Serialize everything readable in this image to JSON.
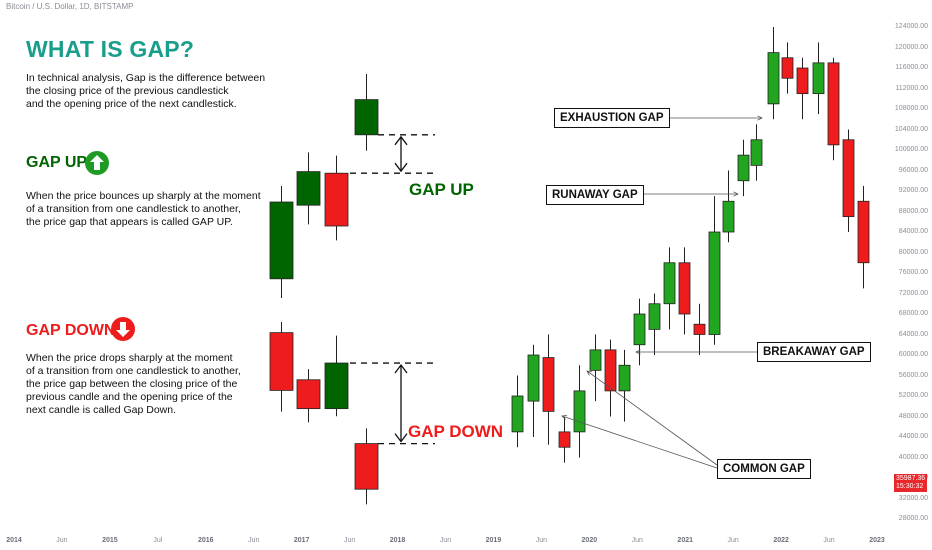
{
  "header": "Bitcoin / U.S. Dollar, 1D, BITSTAMP",
  "title": "WHAT IS GAP?",
  "intro": [
    "In technical analysis, Gap is the difference between",
    "the closing price of the previous candlestick",
    "and the opening price of the next candlestick."
  ],
  "gap_up": {
    "heading": "GAP UP",
    "text": [
      "When the price bounces up sharply at the moment",
      "of a transition from one candlestick to another,",
      "the price gap that appears is called GAP UP."
    ],
    "label": "GAP UP"
  },
  "gap_down": {
    "heading": "GAP DOWN",
    "text": [
      "When the price drops sharply at the moment",
      "of a transition from one candlestick to another,",
      "the price gap between the closing price of the",
      "previous candle and the opening price of the",
      "next candle is called Gap Down."
    ],
    "label": "GAP DOWN"
  },
  "colors": {
    "up": "#006400",
    "down": "#ee1c1c",
    "main_up": "#22a61f",
    "main_down": "#ee1c1c",
    "title": "#1a9e8c"
  },
  "chart_data": {
    "type": "candlestick",
    "price_axis_ticks": [
      "124000.00",
      "120000.00",
      "116000.00",
      "112000.00",
      "108000.00",
      "104000.00",
      "100000.00",
      "96000.00",
      "92000.00",
      "88000.00",
      "84000.00",
      "80000.00",
      "76000.00",
      "72000.00",
      "68000.00",
      "64000.00",
      "60000.00",
      "56000.00",
      "52000.00",
      "48000.00",
      "44000.00",
      "40000.00",
      "36000.00",
      "32000.00",
      "28000.00"
    ],
    "time_axis": [
      {
        "label": "2014",
        "year": true
      },
      {
        "label": "Jun",
        "year": false
      },
      {
        "label": "2015",
        "year": true
      },
      {
        "label": "Jul",
        "year": false
      },
      {
        "label": "2016",
        "year": true
      },
      {
        "label": "Jun",
        "year": false
      },
      {
        "label": "2017",
        "year": true
      },
      {
        "label": "Jun",
        "year": false
      },
      {
        "label": "2018",
        "year": true
      },
      {
        "label": "Jun",
        "year": false
      },
      {
        "label": "2019",
        "year": true
      },
      {
        "label": "Jun",
        "year": false
      },
      {
        "label": "2020",
        "year": true
      },
      {
        "label": "Jun",
        "year": false
      },
      {
        "label": "2021",
        "year": true
      },
      {
        "label": "Jun",
        "year": false
      },
      {
        "label": "2022",
        "year": true
      },
      {
        "label": "Jun",
        "year": false
      },
      {
        "label": "2023",
        "year": true
      }
    ],
    "current_price": "35987.36",
    "countdown": "15:30:32",
    "annotations": [
      "EXHAUSTION GAP",
      "RUNAWAY GAP",
      "BREAKAWAY GAP",
      "COMMON GAP"
    ],
    "gap_up_example": [
      {
        "dir": "up",
        "open": 12,
        "close": 60,
        "high": 70,
        "low": 0
      },
      {
        "dir": "up",
        "open": 58,
        "close": 79,
        "high": 91,
        "low": 46
      },
      {
        "dir": "down",
        "open": 78,
        "close": 45,
        "high": 89,
        "low": 36
      },
      {
        "dir": "up",
        "open": 102,
        "close": 124,
        "high": 140,
        "low": 92
      }
    ],
    "gap_down_example": [
      {
        "dir": "down",
        "open": 118,
        "close": 80,
        "high": 125,
        "low": 66
      },
      {
        "dir": "down",
        "open": 87,
        "close": 68,
        "high": 94,
        "low": 59
      },
      {
        "dir": "up",
        "open": 68,
        "close": 98,
        "high": 116,
        "low": 63
      },
      {
        "dir": "down",
        "open": 45,
        "close": 15,
        "high": 55,
        "low": 5
      }
    ],
    "main_candles": [
      {
        "open": 45000,
        "close": 52000,
        "high": 56000,
        "low": 42000
      },
      {
        "open": 51000,
        "close": 60000,
        "high": 62000,
        "low": 44000
      },
      {
        "open": 59500,
        "close": 49000,
        "high": 64000,
        "low": 42500
      },
      {
        "open": 45000,
        "close": 42000,
        "high": 48000,
        "low": 39000
      },
      {
        "open": 45000,
        "close": 53000,
        "high": 58000,
        "low": 40000
      },
      {
        "open": 57000,
        "close": 61000,
        "high": 64000,
        "low": 51000
      },
      {
        "open": 61000,
        "close": 53000,
        "high": 63000,
        "low": 48000
      },
      {
        "open": 53000,
        "close": 58000,
        "high": 61000,
        "low": 47000
      },
      {
        "open": 62000,
        "close": 68000,
        "high": 71000,
        "low": 58000
      },
      {
        "open": 65000,
        "close": 70000,
        "high": 72000,
        "low": 60000
      },
      {
        "open": 70000,
        "close": 78000,
        "high": 81000,
        "low": 65000
      },
      {
        "open": 78000,
        "close": 68000,
        "high": 81000,
        "low": 64000
      },
      {
        "open": 66000,
        "close": 64000,
        "high": 70000,
        "low": 60000
      },
      {
        "open": 64000,
        "close": 84000,
        "high": 91000,
        "low": 62000
      },
      {
        "open": 84000,
        "close": 90000,
        "high": 96000,
        "low": 82000
      },
      {
        "open": 94000,
        "close": 99000,
        "high": 102000,
        "low": 91000
      },
      {
        "open": 97000,
        "close": 102000,
        "high": 105000,
        "low": 94000
      },
      {
        "open": 109000,
        "close": 119000,
        "high": 124000,
        "low": 106000
      },
      {
        "open": 118000,
        "close": 114000,
        "high": 121000,
        "low": 111000
      },
      {
        "open": 116000,
        "close": 111000,
        "high": 118000,
        "low": 106000
      },
      {
        "open": 111000,
        "close": 117000,
        "high": 121000,
        "low": 107000
      },
      {
        "open": 117000,
        "close": 101000,
        "high": 118000,
        "low": 98000
      },
      {
        "open": 102000,
        "close": 87000,
        "high": 104000,
        "low": 84000
      },
      {
        "open": 90000,
        "close": 78000,
        "high": 93000,
        "low": 73000
      }
    ]
  }
}
